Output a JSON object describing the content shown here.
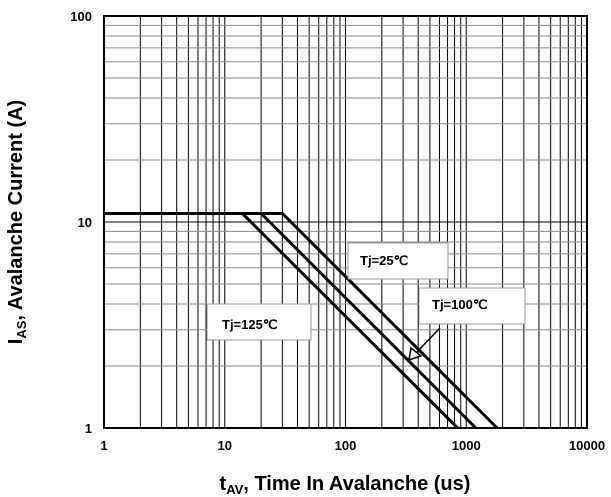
{
  "chart_data": {
    "type": "line",
    "xscale": "log",
    "yscale": "log",
    "xlim": [
      1,
      10000
    ],
    "ylim": [
      1,
      100
    ],
    "grid": true,
    "x_ticks": [
      "1",
      "10",
      "100",
      "1000",
      "10000"
    ],
    "y_ticks": [
      "1",
      "10",
      "100"
    ],
    "xlabel": {
      "main": "t",
      "sub": "AV",
      "rest": ", Time In Avalanche (us)"
    },
    "ylabel": {
      "main": "I",
      "sub": "AS",
      "rest": ", Avalanche Current (A)"
    },
    "series": [
      {
        "points": [
          [
            1,
            11
          ],
          [
            30,
            11
          ],
          [
            1800,
            1
          ]
        ]
      },
      {
        "points": [
          [
            1,
            11
          ],
          [
            20,
            11
          ],
          [
            1200,
            1
          ]
        ]
      },
      {
        "points": [
          [
            1,
            11
          ],
          [
            14,
            11
          ],
          [
            850,
            1
          ]
        ]
      }
    ],
    "annotations": [
      {
        "text": "Tj=25℃"
      },
      {
        "text": "Tj=100℃"
      },
      {
        "text": "Tj=125℃"
      }
    ]
  }
}
